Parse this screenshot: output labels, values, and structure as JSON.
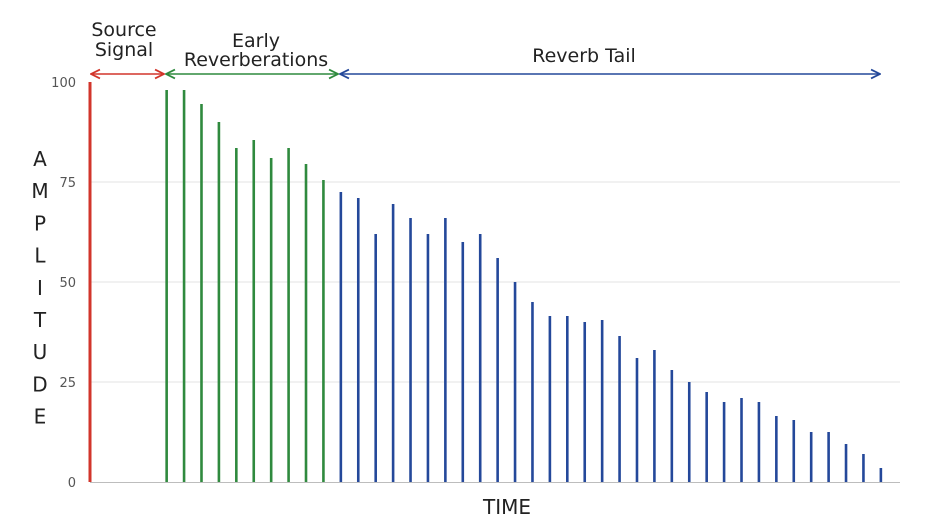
{
  "chart_data": {
    "type": "bar",
    "title": "",
    "xlabel": "TIME",
    "ylabel": "AMPLITUDE",
    "ylim": [
      0,
      100
    ],
    "yticks": [
      0,
      25,
      50,
      75,
      100
    ],
    "grid": true,
    "colors": {
      "source": "#d2352b",
      "early": "#2f8a3e",
      "tail": "#24489a",
      "grid": "#e3e3e3",
      "axis": "#bdbdbd"
    },
    "segments": [
      {
        "label_lines": [
          "Source",
          "Signal"
        ],
        "color": "#d2352b"
      },
      {
        "label_lines": [
          "Early",
          "Reverberations"
        ],
        "color": "#2f8a3e"
      },
      {
        "label_lines": [
          "Reverb Tail"
        ],
        "color": "#24489a"
      }
    ],
    "series": [
      {
        "segment": 0,
        "x": [
          0
        ],
        "values": [
          100
        ]
      },
      {
        "segment": 1,
        "x": [
          4.4,
          5.4,
          6.4,
          7.4,
          8.4,
          9.4,
          10.4,
          11.4,
          12.4,
          13.4
        ],
        "values": [
          98,
          98,
          94.5,
          90,
          83.5,
          85.5,
          81,
          83.5,
          79.5,
          75.5
        ]
      },
      {
        "segment": 2,
        "x": [
          14.4,
          15.4,
          16.4,
          17.4,
          18.4,
          19.4,
          20.4,
          21.4,
          22.4,
          23.4,
          24.4,
          25.4,
          26.4,
          27.4,
          28.4,
          29.4,
          30.4,
          31.4,
          32.4,
          33.4,
          34.4,
          35.4,
          36.4,
          37.4,
          38.4,
          39.4,
          40.4,
          41.4,
          42.4,
          43.4,
          44.4,
          45.4
        ],
        "values": [
          72.5,
          71,
          62,
          69.5,
          66,
          62,
          66,
          60,
          62,
          56,
          50,
          45,
          41.5,
          41.5,
          40,
          40.5,
          36.5,
          31,
          33,
          28,
          25,
          22.5,
          20,
          21,
          20,
          16.5,
          15.5,
          12.5,
          12.5,
          9.5,
          7,
          3.5
        ]
      }
    ]
  }
}
